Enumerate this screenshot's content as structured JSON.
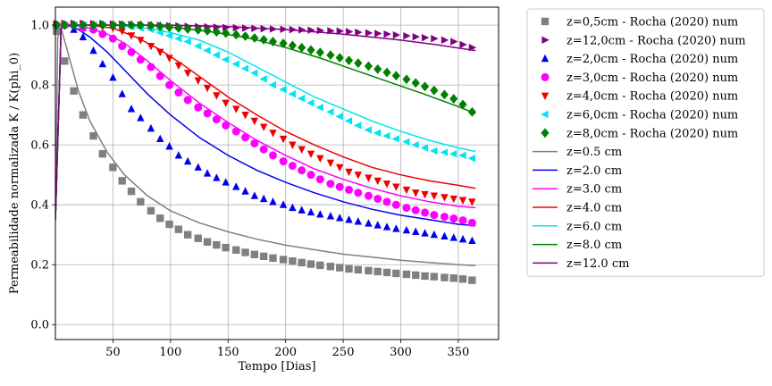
{
  "chart_data": {
    "type": "scatter",
    "xlabel": "Tempo [Dias]",
    "ylabel": "Permeabilidade normalizada K / K(phi_0)",
    "xlim": [
      0,
      385
    ],
    "ylim": [
      -0.05,
      1.06
    ],
    "xticks": [
      50,
      100,
      150,
      200,
      250,
      300,
      350
    ],
    "yticks": [
      0.0,
      0.2,
      0.4,
      0.6,
      0.8,
      1.0
    ],
    "grid": true,
    "legend_position": "outside-right",
    "marker_series": [
      {
        "name": "z=0,5cm - Rocha (2020) num",
        "color": "#808080",
        "marker": "square",
        "x": [
          1,
          8,
          16,
          24,
          33,
          41,
          50,
          58,
          66,
          74,
          83,
          91,
          99,
          107,
          115,
          124,
          132,
          140,
          148,
          157,
          165,
          173,
          181,
          189,
          198,
          206,
          214,
          222,
          230,
          239,
          247,
          255,
          263,
          272,
          280,
          288,
          296,
          305,
          313,
          321,
          329,
          338,
          346,
          354,
          362
        ],
        "y": [
          0.98,
          0.88,
          0.78,
          0.7,
          0.63,
          0.57,
          0.525,
          0.48,
          0.445,
          0.41,
          0.38,
          0.355,
          0.335,
          0.318,
          0.3,
          0.288,
          0.276,
          0.266,
          0.257,
          0.249,
          0.241,
          0.234,
          0.228,
          0.222,
          0.217,
          0.212,
          0.207,
          0.202,
          0.198,
          0.194,
          0.19,
          0.186,
          0.183,
          0.18,
          0.177,
          0.174,
          0.171,
          0.168,
          0.165,
          0.162,
          0.16,
          0.157,
          0.155,
          0.152,
          0.148
        ]
      },
      {
        "name": "z=12,0cm - Rocha (2020) num",
        "color": "#800080",
        "marker": "triangle-right",
        "x": [
          1,
          8,
          16,
          24,
          33,
          41,
          50,
          58,
          66,
          74,
          83,
          91,
          99,
          107,
          115,
          124,
          132,
          140,
          148,
          157,
          165,
          173,
          181,
          189,
          198,
          206,
          214,
          222,
          230,
          239,
          247,
          255,
          263,
          272,
          280,
          288,
          296,
          305,
          313,
          321,
          329,
          338,
          346,
          354,
          362
        ],
        "y": [
          1.005,
          1.006,
          1.006,
          1.006,
          1.005,
          1.005,
          1.004,
          1.003,
          1.002,
          1.001,
          1.0,
          0.999,
          0.998,
          0.997,
          0.996,
          0.995,
          0.994,
          0.993,
          0.992,
          0.991,
          0.99,
          0.989,
          0.988,
          0.987,
          0.986,
          0.985,
          0.984,
          0.983,
          0.982,
          0.981,
          0.98,
          0.978,
          0.976,
          0.974,
          0.972,
          0.97,
          0.967,
          0.964,
          0.961,
          0.958,
          0.955,
          0.95,
          0.945,
          0.935,
          0.925
        ]
      },
      {
        "name": "z=2,0cm - Rocha (2020) num",
        "color": "#0000ee",
        "marker": "triangle-up",
        "x": [
          1,
          8,
          16,
          24,
          33,
          41,
          50,
          58,
          66,
          74,
          83,
          91,
          99,
          107,
          115,
          124,
          132,
          140,
          148,
          157,
          165,
          173,
          181,
          189,
          198,
          206,
          214,
          222,
          230,
          239,
          247,
          255,
          263,
          272,
          280,
          288,
          296,
          305,
          313,
          321,
          329,
          338,
          346,
          354,
          362
        ],
        "y": [
          1.0,
          1.0,
          0.985,
          0.96,
          0.915,
          0.87,
          0.825,
          0.77,
          0.72,
          0.69,
          0.655,
          0.62,
          0.595,
          0.565,
          0.545,
          0.525,
          0.505,
          0.49,
          0.475,
          0.46,
          0.445,
          0.43,
          0.42,
          0.41,
          0.4,
          0.39,
          0.382,
          0.375,
          0.368,
          0.362,
          0.356,
          0.35,
          0.344,
          0.338,
          0.332,
          0.326,
          0.32,
          0.315,
          0.31,
          0.305,
          0.3,
          0.295,
          0.29,
          0.285,
          0.28
        ]
      },
      {
        "name": "z=3,0cm - Rocha (2020) num",
        "color": "#ff00ff",
        "marker": "circle",
        "x": [
          1,
          8,
          16,
          24,
          33,
          41,
          50,
          58,
          66,
          74,
          83,
          91,
          99,
          107,
          115,
          124,
          132,
          140,
          148,
          157,
          165,
          173,
          181,
          189,
          198,
          206,
          214,
          222,
          230,
          239,
          247,
          255,
          263,
          272,
          280,
          288,
          296,
          305,
          313,
          321,
          329,
          338,
          346,
          354,
          362
        ],
        "y": [
          1.0,
          1.0,
          1.0,
          0.99,
          0.985,
          0.97,
          0.955,
          0.93,
          0.91,
          0.885,
          0.86,
          0.83,
          0.8,
          0.775,
          0.75,
          0.725,
          0.705,
          0.685,
          0.665,
          0.645,
          0.625,
          0.605,
          0.585,
          0.565,
          0.545,
          0.53,
          0.515,
          0.5,
          0.485,
          0.47,
          0.46,
          0.45,
          0.44,
          0.43,
          0.42,
          0.41,
          0.4,
          0.39,
          0.382,
          0.374,
          0.366,
          0.36,
          0.354,
          0.348,
          0.34
        ]
      },
      {
        "name": "z=4,0cm - Rocha (2020) num",
        "color": "#ee0000",
        "marker": "triangle-down",
        "x": [
          1,
          8,
          16,
          24,
          33,
          41,
          50,
          58,
          66,
          74,
          83,
          91,
          99,
          107,
          115,
          124,
          132,
          140,
          148,
          157,
          165,
          173,
          181,
          189,
          198,
          206,
          214,
          222,
          230,
          239,
          247,
          255,
          263,
          272,
          280,
          288,
          296,
          305,
          313,
          321,
          329,
          338,
          346,
          354,
          362
        ],
        "y": [
          1.0,
          1.0,
          1.0,
          1.0,
          1.0,
          0.995,
          0.99,
          0.98,
          0.965,
          0.95,
          0.93,
          0.91,
          0.89,
          0.865,
          0.84,
          0.815,
          0.79,
          0.765,
          0.74,
          0.72,
          0.7,
          0.68,
          0.66,
          0.64,
          0.62,
          0.6,
          0.585,
          0.57,
          0.555,
          0.54,
          0.525,
          0.51,
          0.5,
          0.49,
          0.48,
          0.47,
          0.46,
          0.45,
          0.44,
          0.435,
          0.43,
          0.425,
          0.42,
          0.415,
          0.41
        ]
      },
      {
        "name": "z=6,0cm - Rocha (2020) num",
        "color": "#00e5ee",
        "marker": "triangle-left",
        "x": [
          1,
          8,
          16,
          24,
          33,
          41,
          50,
          58,
          66,
          74,
          83,
          91,
          99,
          107,
          115,
          124,
          132,
          140,
          148,
          157,
          165,
          173,
          181,
          189,
          198,
          206,
          214,
          222,
          230,
          239,
          247,
          255,
          263,
          272,
          280,
          288,
          296,
          305,
          313,
          321,
          329,
          338,
          346,
          354,
          362
        ],
        "y": [
          1.0,
          1.0,
          1.0,
          1.0,
          1.0,
          1.0,
          1.0,
          1.0,
          0.995,
          0.99,
          0.985,
          0.975,
          0.965,
          0.955,
          0.945,
          0.93,
          0.915,
          0.9,
          0.885,
          0.87,
          0.855,
          0.84,
          0.82,
          0.8,
          0.785,
          0.77,
          0.755,
          0.74,
          0.725,
          0.71,
          0.695,
          0.68,
          0.665,
          0.65,
          0.64,
          0.63,
          0.62,
          0.61,
          0.6,
          0.59,
          0.58,
          0.575,
          0.57,
          0.565,
          0.555
        ]
      },
      {
        "name": "z=8,0cm - Rocha (2020) num",
        "color": "#008000",
        "marker": "diamond",
        "x": [
          1,
          8,
          16,
          24,
          33,
          41,
          50,
          58,
          66,
          74,
          83,
          91,
          99,
          107,
          115,
          124,
          132,
          140,
          148,
          157,
          165,
          173,
          181,
          189,
          198,
          206,
          214,
          222,
          230,
          239,
          247,
          255,
          263,
          272,
          280,
          288,
          296,
          305,
          313,
          321,
          329,
          338,
          346,
          354,
          362
        ],
        "y": [
          1.0,
          1.0,
          1.0,
          1.0,
          1.0,
          1.0,
          1.0,
          1.0,
          1.0,
          1.0,
          0.998,
          0.996,
          0.993,
          0.99,
          0.987,
          0.984,
          0.981,
          0.977,
          0.973,
          0.968,
          0.963,
          0.957,
          0.951,
          0.945,
          0.939,
          0.932,
          0.925,
          0.917,
          0.909,
          0.9,
          0.891,
          0.882,
          0.873,
          0.863,
          0.853,
          0.842,
          0.831,
          0.819,
          0.807,
          0.795,
          0.782,
          0.768,
          0.754,
          0.735,
          0.71
        ]
      }
    ],
    "line_series": [
      {
        "name": "z=0.5 cm",
        "color": "#808080",
        "x": [
          0,
          2,
          5,
          10,
          20,
          30,
          45,
          60,
          80,
          100,
          125,
          150,
          175,
          200,
          225,
          250,
          275,
          300,
          325,
          350,
          365
        ],
        "y": [
          0.35,
          0.96,
          0.99,
          0.92,
          0.78,
          0.68,
          0.575,
          0.5,
          0.43,
          0.38,
          0.34,
          0.31,
          0.285,
          0.265,
          0.25,
          0.235,
          0.225,
          0.215,
          0.207,
          0.2,
          0.197
        ]
      },
      {
        "name": "z=2.0 cm",
        "color": "#0000ee",
        "x": [
          0,
          5,
          10,
          20,
          30,
          45,
          60,
          80,
          100,
          125,
          150,
          175,
          200,
          225,
          250,
          275,
          300,
          325,
          350,
          365
        ],
        "y": [
          0.35,
          0.99,
          1.0,
          0.985,
          0.96,
          0.91,
          0.85,
          0.77,
          0.7,
          0.625,
          0.565,
          0.515,
          0.475,
          0.44,
          0.41,
          0.385,
          0.365,
          0.35,
          0.335,
          0.33
        ]
      },
      {
        "name": "z=3.0 cm",
        "color": "#ff00ff",
        "x": [
          0,
          5,
          10,
          20,
          30,
          45,
          60,
          80,
          100,
          125,
          150,
          175,
          200,
          225,
          250,
          275,
          300,
          325,
          350,
          365
        ],
        "y": [
          0.35,
          0.99,
          1.0,
          0.998,
          0.99,
          0.97,
          0.94,
          0.88,
          0.815,
          0.74,
          0.675,
          0.615,
          0.565,
          0.52,
          0.485,
          0.455,
          0.43,
          0.41,
          0.395,
          0.39
        ]
      },
      {
        "name": "z=4.0 cm",
        "color": "#ee0000",
        "x": [
          0,
          5,
          10,
          30,
          50,
          70,
          90,
          110,
          130,
          150,
          175,
          200,
          225,
          250,
          275,
          300,
          325,
          350,
          365
        ],
        "y": [
          0.35,
          0.99,
          1.0,
          1.0,
          0.99,
          0.96,
          0.92,
          0.87,
          0.815,
          0.76,
          0.7,
          0.645,
          0.6,
          0.56,
          0.525,
          0.5,
          0.48,
          0.465,
          0.455
        ]
      },
      {
        "name": "z=6.0 cm",
        "color": "#00e5ee",
        "x": [
          0,
          5,
          10,
          50,
          80,
          100,
          125,
          150,
          175,
          200,
          225,
          250,
          275,
          300,
          325,
          350,
          365
        ],
        "y": [
          0.35,
          0.99,
          1.0,
          1.0,
          0.99,
          0.975,
          0.95,
          0.91,
          0.86,
          0.81,
          0.76,
          0.72,
          0.68,
          0.645,
          0.615,
          0.59,
          0.578
        ]
      },
      {
        "name": "z=8.0 cm",
        "color": "#008000",
        "x": [
          0,
          5,
          10,
          80,
          110,
          140,
          170,
          200,
          230,
          260,
          290,
          320,
          345,
          365
        ],
        "y": [
          0.35,
          0.99,
          1.0,
          1.0,
          0.99,
          0.975,
          0.955,
          0.925,
          0.89,
          0.85,
          0.81,
          0.77,
          0.735,
          0.705
        ]
      },
      {
        "name": "z=12.0 cm",
        "color": "#800080",
        "x": [
          0,
          5,
          10,
          100,
          150,
          200,
          250,
          300,
          330,
          365
        ],
        "y": [
          0.35,
          0.99,
          1.0,
          1.0,
          0.995,
          0.985,
          0.97,
          0.95,
          0.935,
          0.915
        ]
      }
    ],
    "legend_order": [
      "z=0,5cm - Rocha (2020) num",
      "z=12,0cm - Rocha (2020) num",
      "z=2,0cm - Rocha (2020) num",
      "z=3,0cm - Rocha (2020) num",
      "z=4,0cm - Rocha (2020) num",
      "z=6,0cm - Rocha (2020) num",
      "z=8,0cm - Rocha (2020) num",
      "z=0.5 cm",
      "z=2.0 cm",
      "z=3.0 cm",
      "z=4.0 cm",
      "z=6.0 cm",
      "z=8.0 cm",
      "z=12.0 cm"
    ]
  }
}
